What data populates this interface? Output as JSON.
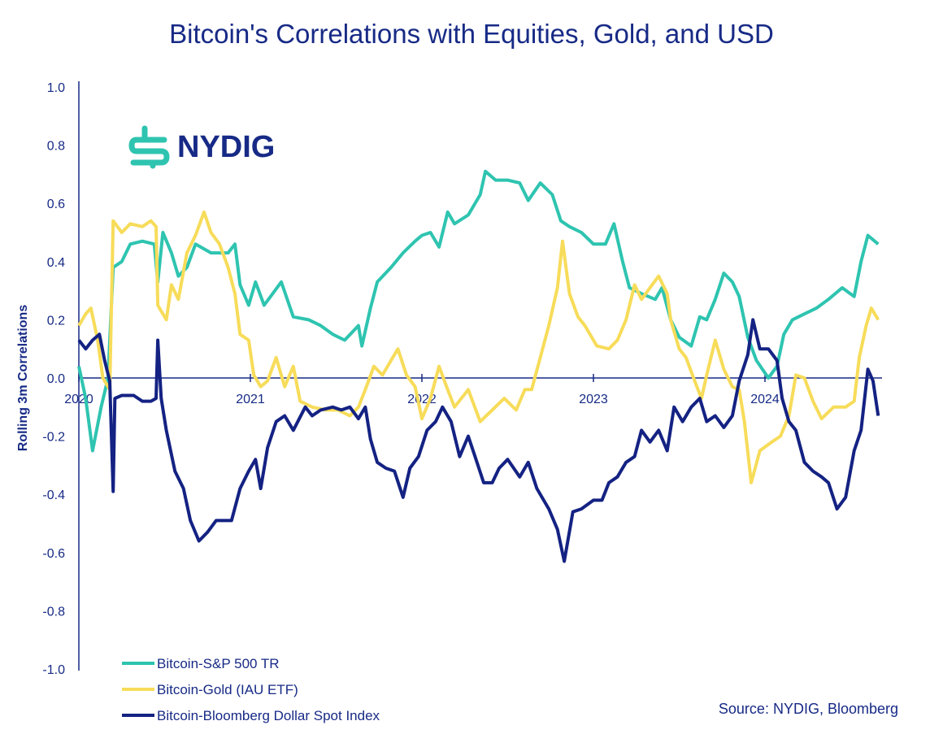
{
  "chart_data": {
    "type": "line",
    "title": "Bitcoin's Correlations with Equities, Gold, and USD",
    "xlabel": "",
    "ylabel": "Rolling 3m Correlations",
    "ylim": [
      -1.0,
      1.0
    ],
    "yticks": [
      "1.0",
      "0.8",
      "0.6",
      "0.4",
      "0.2",
      "0.0",
      "-0.2",
      "-0.4",
      "-0.6",
      "-0.8",
      "-1.0"
    ],
    "xticks": [
      "2020",
      "2021",
      "2022",
      "2023",
      "2024"
    ],
    "xlim": [
      2020.0,
      2024.7
    ],
    "grid": false,
    "legend_position": "bottom-left",
    "source": "Source: NYDIG, Bloomberg",
    "logo_text": "NYDIG",
    "series": [
      {
        "name": "Bitcoin-S&P 500 TR",
        "color": "#2ec4b0",
        "points": [
          [
            2020.0,
            0.04
          ],
          [
            2020.04,
            -0.07
          ],
          [
            2020.08,
            -0.25
          ],
          [
            2020.13,
            -0.1
          ],
          [
            2020.17,
            0.0
          ],
          [
            2020.2,
            0.38
          ],
          [
            2020.25,
            0.4
          ],
          [
            2020.3,
            0.46
          ],
          [
            2020.37,
            0.47
          ],
          [
            2020.44,
            0.46
          ],
          [
            2020.46,
            0.33
          ],
          [
            2020.49,
            0.5
          ],
          [
            2020.54,
            0.43
          ],
          [
            2020.58,
            0.35
          ],
          [
            2020.63,
            0.38
          ],
          [
            2020.68,
            0.46
          ],
          [
            2020.77,
            0.43
          ],
          [
            2020.87,
            0.43
          ],
          [
            2020.91,
            0.46
          ],
          [
            2020.94,
            0.32
          ],
          [
            2020.99,
            0.25
          ],
          [
            2021.03,
            0.33
          ],
          [
            2021.08,
            0.25
          ],
          [
            2021.18,
            0.33
          ],
          [
            2021.25,
            0.21
          ],
          [
            2021.34,
            0.2
          ],
          [
            2021.41,
            0.18
          ],
          [
            2021.48,
            0.15
          ],
          [
            2021.55,
            0.13
          ],
          [
            2021.63,
            0.18
          ],
          [
            2021.65,
            0.11
          ],
          [
            2021.7,
            0.24
          ],
          [
            2021.74,
            0.33
          ],
          [
            2021.82,
            0.38
          ],
          [
            2021.89,
            0.43
          ],
          [
            2021.96,
            0.47
          ],
          [
            2022.0,
            0.49
          ],
          [
            2022.05,
            0.5
          ],
          [
            2022.1,
            0.45
          ],
          [
            2022.15,
            0.57
          ],
          [
            2022.19,
            0.53
          ],
          [
            2022.27,
            0.56
          ],
          [
            2022.34,
            0.63
          ],
          [
            2022.37,
            0.71
          ],
          [
            2022.43,
            0.68
          ],
          [
            2022.5,
            0.68
          ],
          [
            2022.57,
            0.67
          ],
          [
            2022.62,
            0.61
          ],
          [
            2022.69,
            0.67
          ],
          [
            2022.76,
            0.63
          ],
          [
            2022.81,
            0.54
          ],
          [
            2022.86,
            0.52
          ],
          [
            2022.93,
            0.5
          ],
          [
            2023.0,
            0.46
          ],
          [
            2023.07,
            0.46
          ],
          [
            2023.12,
            0.53
          ],
          [
            2023.17,
            0.4
          ],
          [
            2023.21,
            0.31
          ],
          [
            2023.28,
            0.29
          ],
          [
            2023.36,
            0.27
          ],
          [
            2023.4,
            0.31
          ],
          [
            2023.45,
            0.2
          ],
          [
            2023.5,
            0.14
          ],
          [
            2023.57,
            0.11
          ],
          [
            2023.62,
            0.21
          ],
          [
            2023.66,
            0.2
          ],
          [
            2023.71,
            0.27
          ],
          [
            2023.76,
            0.36
          ],
          [
            2023.81,
            0.33
          ],
          [
            2023.85,
            0.28
          ],
          [
            2023.9,
            0.14
          ],
          [
            2023.95,
            0.06
          ],
          [
            2024.02,
            0.0
          ],
          [
            2024.07,
            0.04
          ],
          [
            2024.11,
            0.15
          ],
          [
            2024.16,
            0.2
          ],
          [
            2024.23,
            0.22
          ],
          [
            2024.3,
            0.24
          ],
          [
            2024.37,
            0.27
          ],
          [
            2024.45,
            0.31
          ],
          [
            2024.52,
            0.28
          ],
          [
            2024.56,
            0.4
          ],
          [
            2024.6,
            0.49
          ],
          [
            2024.66,
            0.46
          ]
        ]
      },
      {
        "name": "Bitcoin-Gold (IAU ETF)",
        "color": "#f7dc5a",
        "points": [
          [
            2020.0,
            0.18
          ],
          [
            2020.04,
            0.22
          ],
          [
            2020.07,
            0.24
          ],
          [
            2020.11,
            0.13
          ],
          [
            2020.14,
            0.0
          ],
          [
            2020.18,
            -0.04
          ],
          [
            2020.2,
            0.54
          ],
          [
            2020.25,
            0.5
          ],
          [
            2020.3,
            0.53
          ],
          [
            2020.37,
            0.52
          ],
          [
            2020.42,
            0.54
          ],
          [
            2020.45,
            0.52
          ],
          [
            2020.46,
            0.25
          ],
          [
            2020.51,
            0.2
          ],
          [
            2020.54,
            0.32
          ],
          [
            2020.58,
            0.27
          ],
          [
            2020.63,
            0.43
          ],
          [
            2020.68,
            0.49
          ],
          [
            2020.73,
            0.57
          ],
          [
            2020.77,
            0.5
          ],
          [
            2020.82,
            0.46
          ],
          [
            2020.87,
            0.38
          ],
          [
            2020.91,
            0.29
          ],
          [
            2020.94,
            0.15
          ],
          [
            2020.99,
            0.13
          ],
          [
            2021.02,
            0.01
          ],
          [
            2021.06,
            -0.03
          ],
          [
            2021.1,
            -0.01
          ],
          [
            2021.15,
            0.07
          ],
          [
            2021.2,
            -0.03
          ],
          [
            2021.25,
            0.04
          ],
          [
            2021.29,
            -0.08
          ],
          [
            2021.36,
            -0.1
          ],
          [
            2021.44,
            -0.11
          ],
          [
            2021.51,
            -0.11
          ],
          [
            2021.58,
            -0.13
          ],
          [
            2021.63,
            -0.1
          ],
          [
            2021.67,
            -0.04
          ],
          [
            2021.72,
            0.04
          ],
          [
            2021.77,
            0.01
          ],
          [
            2021.82,
            0.06
          ],
          [
            2021.86,
            0.1
          ],
          [
            2021.91,
            0.01
          ],
          [
            2021.96,
            -0.03
          ],
          [
            2022.0,
            -0.14
          ],
          [
            2022.05,
            -0.07
          ],
          [
            2022.1,
            0.04
          ],
          [
            2022.15,
            -0.04
          ],
          [
            2022.19,
            -0.1
          ],
          [
            2022.27,
            -0.04
          ],
          [
            2022.34,
            -0.15
          ],
          [
            2022.41,
            -0.11
          ],
          [
            2022.48,
            -0.07
          ],
          [
            2022.55,
            -0.11
          ],
          [
            2022.6,
            -0.04
          ],
          [
            2022.64,
            -0.04
          ],
          [
            2022.69,
            0.07
          ],
          [
            2022.74,
            0.18
          ],
          [
            2022.79,
            0.31
          ],
          [
            2022.82,
            0.47
          ],
          [
            2022.86,
            0.29
          ],
          [
            2022.91,
            0.21
          ],
          [
            2022.95,
            0.18
          ],
          [
            2023.02,
            0.11
          ],
          [
            2023.09,
            0.1
          ],
          [
            2023.14,
            0.13
          ],
          [
            2023.19,
            0.2
          ],
          [
            2023.24,
            0.32
          ],
          [
            2023.28,
            0.27
          ],
          [
            2023.33,
            0.31
          ],
          [
            2023.38,
            0.35
          ],
          [
            2023.43,
            0.29
          ],
          [
            2023.45,
            0.2
          ],
          [
            2023.5,
            0.1
          ],
          [
            2023.54,
            0.07
          ],
          [
            2023.59,
            -0.01
          ],
          [
            2023.63,
            -0.07
          ],
          [
            2023.66,
            0.01
          ],
          [
            2023.71,
            0.13
          ],
          [
            2023.76,
            0.03
          ],
          [
            2023.81,
            -0.03
          ],
          [
            2023.85,
            -0.04
          ],
          [
            2023.88,
            -0.15
          ],
          [
            2023.92,
            -0.36
          ],
          [
            2023.97,
            -0.25
          ],
          [
            2024.04,
            -0.22
          ],
          [
            2024.09,
            -0.2
          ],
          [
            2024.14,
            -0.13
          ],
          [
            2024.18,
            0.01
          ],
          [
            2024.23,
            0.0
          ],
          [
            2024.28,
            -0.08
          ],
          [
            2024.33,
            -0.14
          ],
          [
            2024.4,
            -0.1
          ],
          [
            2024.47,
            -0.1
          ],
          [
            2024.52,
            -0.08
          ],
          [
            2024.55,
            0.07
          ],
          [
            2024.59,
            0.18
          ],
          [
            2024.62,
            0.24
          ],
          [
            2024.66,
            0.2
          ]
        ]
      },
      {
        "name": "Bitcoin-Bloomberg Dollar Spot Index",
        "color": "#142283",
        "points": [
          [
            2020.0,
            0.13
          ],
          [
            2020.04,
            0.1
          ],
          [
            2020.08,
            0.13
          ],
          [
            2020.12,
            0.15
          ],
          [
            2020.15,
            0.06
          ],
          [
            2020.18,
            -0.01
          ],
          [
            2020.2,
            -0.39
          ],
          [
            2020.21,
            -0.07
          ],
          [
            2020.25,
            -0.06
          ],
          [
            2020.32,
            -0.06
          ],
          [
            2020.37,
            -0.08
          ],
          [
            2020.42,
            -0.08
          ],
          [
            2020.45,
            -0.07
          ],
          [
            2020.46,
            0.13
          ],
          [
            2020.48,
            -0.07
          ],
          [
            2020.51,
            -0.18
          ],
          [
            2020.56,
            -0.32
          ],
          [
            2020.61,
            -0.38
          ],
          [
            2020.65,
            -0.49
          ],
          [
            2020.7,
            -0.56
          ],
          [
            2020.75,
            -0.53
          ],
          [
            2020.8,
            -0.49
          ],
          [
            2020.84,
            -0.49
          ],
          [
            2020.89,
            -0.49
          ],
          [
            2020.94,
            -0.38
          ],
          [
            2020.99,
            -0.32
          ],
          [
            2021.03,
            -0.28
          ],
          [
            2021.06,
            -0.38
          ],
          [
            2021.1,
            -0.24
          ],
          [
            2021.15,
            -0.15
          ],
          [
            2021.2,
            -0.13
          ],
          [
            2021.25,
            -0.18
          ],
          [
            2021.32,
            -0.1
          ],
          [
            2021.36,
            -0.13
          ],
          [
            2021.41,
            -0.11
          ],
          [
            2021.48,
            -0.1
          ],
          [
            2021.53,
            -0.11
          ],
          [
            2021.58,
            -0.1
          ],
          [
            2021.63,
            -0.14
          ],
          [
            2021.67,
            -0.1
          ],
          [
            2021.7,
            -0.21
          ],
          [
            2021.74,
            -0.29
          ],
          [
            2021.79,
            -0.31
          ],
          [
            2021.84,
            -0.32
          ],
          [
            2021.89,
            -0.41
          ],
          [
            2021.93,
            -0.31
          ],
          [
            2021.98,
            -0.27
          ],
          [
            2022.03,
            -0.18
          ],
          [
            2022.08,
            -0.15
          ],
          [
            2022.12,
            -0.1
          ],
          [
            2022.17,
            -0.15
          ],
          [
            2022.22,
            -0.27
          ],
          [
            2022.27,
            -0.2
          ],
          [
            2022.31,
            -0.27
          ],
          [
            2022.36,
            -0.36
          ],
          [
            2022.41,
            -0.36
          ],
          [
            2022.45,
            -0.31
          ],
          [
            2022.5,
            -0.28
          ],
          [
            2022.57,
            -0.34
          ],
          [
            2022.62,
            -0.29
          ],
          [
            2022.67,
            -0.38
          ],
          [
            2022.74,
            -0.45
          ],
          [
            2022.79,
            -0.52
          ],
          [
            2022.83,
            -0.63
          ],
          [
            2022.88,
            -0.46
          ],
          [
            2022.93,
            -0.45
          ],
          [
            2023.0,
            -0.42
          ],
          [
            2023.05,
            -0.42
          ],
          [
            2023.09,
            -0.36
          ],
          [
            2023.14,
            -0.34
          ],
          [
            2023.19,
            -0.29
          ],
          [
            2023.24,
            -0.27
          ],
          [
            2023.28,
            -0.18
          ],
          [
            2023.33,
            -0.22
          ],
          [
            2023.38,
            -0.18
          ],
          [
            2023.43,
            -0.25
          ],
          [
            2023.47,
            -0.1
          ],
          [
            2023.52,
            -0.15
          ],
          [
            2023.57,
            -0.1
          ],
          [
            2023.62,
            -0.07
          ],
          [
            2023.66,
            -0.15
          ],
          [
            2023.71,
            -0.13
          ],
          [
            2023.76,
            -0.17
          ],
          [
            2023.81,
            -0.13
          ],
          [
            2023.85,
            -0.01
          ],
          [
            2023.9,
            0.08
          ],
          [
            2023.93,
            0.2
          ],
          [
            2023.97,
            0.1
          ],
          [
            2024.02,
            0.1
          ],
          [
            2024.07,
            0.06
          ],
          [
            2024.1,
            -0.07
          ],
          [
            2024.14,
            -0.15
          ],
          [
            2024.18,
            -0.18
          ],
          [
            2024.23,
            -0.29
          ],
          [
            2024.28,
            -0.32
          ],
          [
            2024.33,
            -0.34
          ],
          [
            2024.37,
            -0.36
          ],
          [
            2024.42,
            -0.45
          ],
          [
            2024.47,
            -0.41
          ],
          [
            2024.52,
            -0.25
          ],
          [
            2024.56,
            -0.18
          ],
          [
            2024.6,
            0.03
          ],
          [
            2024.63,
            -0.01
          ],
          [
            2024.66,
            -0.13
          ]
        ]
      }
    ]
  }
}
